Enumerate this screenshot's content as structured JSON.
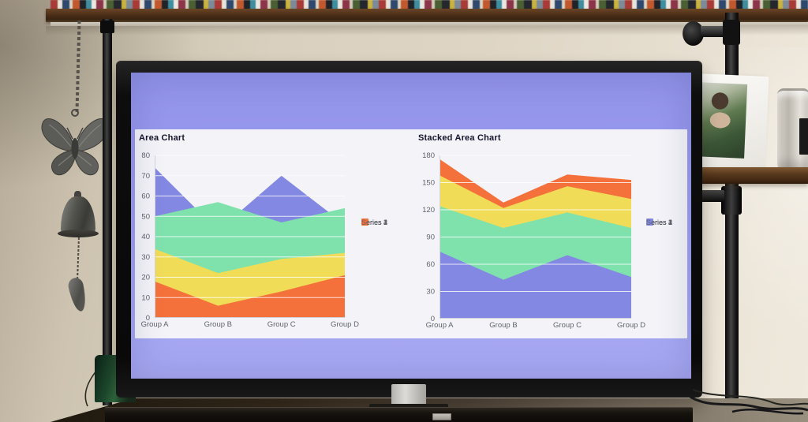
{
  "scene": {
    "description": "TV on media stand showing two charts, wooden bookshelf above, butterfly bell wind-chime on left, pipe shelving with picture frame and glass jar on right, soundbar below"
  },
  "tv": {
    "screen_bg": "#9c9df0",
    "panel_bg": "#f3f3f8",
    "title_color": "#14142c",
    "tick_color": "#63636e"
  },
  "chart_data": [
    {
      "id": "area",
      "type": "area",
      "title": "Area Chart",
      "categories": [
        "Group A",
        "Group B",
        "Group C",
        "Group D"
      ],
      "series": [
        {
          "name": "Series 1",
          "color": "#8389e2",
          "values": [
            74,
            43,
            70,
            46
          ]
        },
        {
          "name": "Series 2",
          "color": "#7fe2ac",
          "values": [
            50,
            57,
            47,
            54
          ]
        },
        {
          "name": "Series 3",
          "color": "#f0dc57",
          "values": [
            34,
            22,
            29,
            32
          ]
        },
        {
          "name": "Series 4",
          "color": "#f4713c",
          "values": [
            18,
            6,
            13,
            21
          ]
        }
      ],
      "ylim": [
        0,
        80
      ],
      "yticks": [
        0,
        10,
        20,
        30,
        40,
        50,
        60,
        70,
        80
      ],
      "grid": true,
      "legend_position": "right",
      "legend": [
        {
          "label": "Series 1",
          "color": "#8389e2"
        },
        {
          "label": "Series 2",
          "color": "#7fe2ac"
        },
        {
          "label": "Series 3",
          "color": "#f0dc57"
        },
        {
          "label": "Series 4",
          "color": "#f4713c"
        }
      ]
    },
    {
      "id": "stacked",
      "type": "stacked-area",
      "title": "Stacked Area Chart",
      "categories": [
        "Group A",
        "Group B",
        "Group C",
        "Group D"
      ],
      "series": [
        {
          "name": "Series 1",
          "color": "#8389e2",
          "values": [
            74,
            43,
            70,
            46
          ]
        },
        {
          "name": "Series 2",
          "color": "#7fe2ac",
          "values": [
            50,
            57,
            47,
            54
          ]
        },
        {
          "name": "Series 3",
          "color": "#f0dc57",
          "values": [
            34,
            22,
            29,
            32
          ]
        },
        {
          "name": "Series 4",
          "color": "#f4713c",
          "values": [
            18,
            6,
            13,
            21
          ]
        }
      ],
      "ylim": [
        0,
        180
      ],
      "yticks": [
        0,
        30,
        60,
        90,
        120,
        150,
        180
      ],
      "grid": true,
      "legend_position": "right",
      "legend": [
        {
          "label": "Series 4",
          "color": "#f4713c"
        },
        {
          "label": "Series 3",
          "color": "#f0dc57"
        },
        {
          "label": "Series 2",
          "color": "#7fe2ac"
        },
        {
          "label": "Series 1",
          "color": "#8389e2"
        }
      ]
    }
  ]
}
